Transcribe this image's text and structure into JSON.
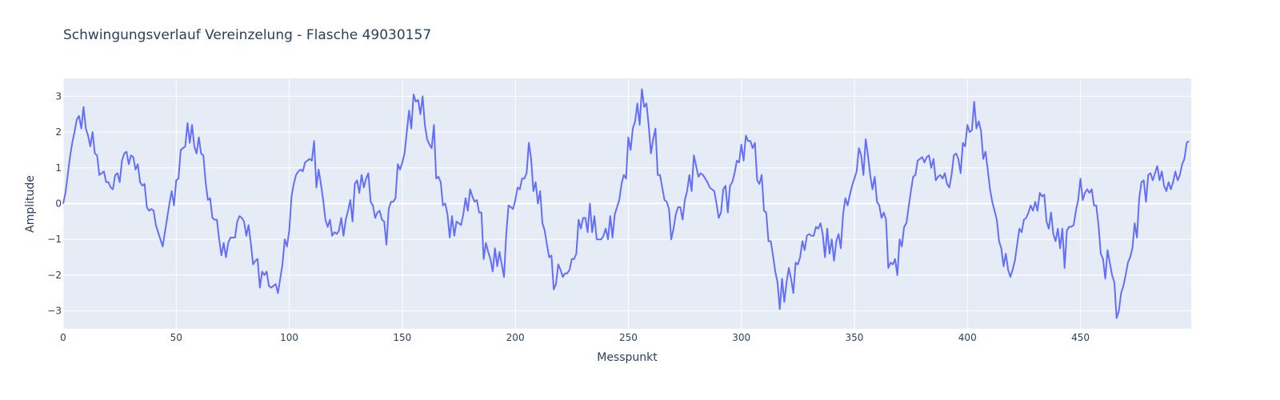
{
  "chart_data": {
    "type": "line",
    "title": "Schwingungsverlauf Vereinzelung - Flasche 49030157",
    "xlabel": "Messpunkt",
    "ylabel": "Amplitude",
    "xlim": [
      0,
      499
    ],
    "ylim": [
      -3.5,
      3.5
    ],
    "x_ticks": [
      0,
      50,
      100,
      150,
      200,
      250,
      300,
      350,
      400,
      450
    ],
    "y_ticks": [
      -3,
      -2,
      -1,
      0,
      1,
      2,
      3
    ],
    "grid": true,
    "colors": {
      "line": "#636efa",
      "plot_bg": "#e5ecf6",
      "grid": "#ffffff",
      "text": "#2a3f5f"
    },
    "series": [
      {
        "x_start": 0,
        "x_step": 1,
        "values": [
          0.0,
          0.3,
          0.8,
          1.3,
          1.7,
          2.0,
          2.35,
          2.45,
          2.1,
          2.7,
          2.1,
          1.9,
          1.6,
          2.0,
          1.4,
          1.35,
          0.8,
          0.85,
          0.9,
          0.6,
          0.6,
          0.45,
          0.4,
          0.8,
          0.85,
          0.6,
          1.2,
          1.4,
          1.45,
          1.1,
          1.35,
          1.3,
          0.95,
          1.1,
          0.6,
          0.5,
          0.55,
          -0.1,
          -0.2,
          -0.15,
          -0.2,
          -0.6,
          -0.8,
          -1.0,
          -1.2,
          -0.8,
          -0.4,
          0.0,
          0.35,
          -0.05,
          0.65,
          0.7,
          1.5,
          1.55,
          1.6,
          2.25,
          1.7,
          2.2,
          1.6,
          1.4,
          1.85,
          1.4,
          1.35,
          0.6,
          0.1,
          0.15,
          -0.4,
          -0.45,
          -0.45,
          -1.0,
          -1.45,
          -1.1,
          -1.5,
          -1.1,
          -0.95,
          -0.95,
          -0.95,
          -0.5,
          -0.35,
          -0.4,
          -0.5,
          -0.9,
          -0.6,
          -1.1,
          -1.7,
          -1.6,
          -1.55,
          -2.35,
          -1.9,
          -2.0,
          -1.9,
          -2.3,
          -2.35,
          -2.3,
          -2.25,
          -2.5,
          -2.1,
          -1.7,
          -1.0,
          -1.2,
          -0.75,
          0.2,
          0.55,
          0.8,
          0.9,
          0.95,
          0.9,
          1.15,
          1.2,
          1.25,
          1.2,
          1.75,
          0.45,
          0.95,
          0.55,
          0.1,
          -0.45,
          -0.65,
          -0.45,
          -0.9,
          -0.8,
          -0.85,
          -0.75,
          -0.4,
          -0.9,
          -0.45,
          -0.2,
          0.1,
          -0.5,
          0.55,
          0.65,
          0.3,
          0.8,
          0.45,
          0.7,
          0.85,
          0.05,
          -0.05,
          -0.4,
          -0.25,
          -0.2,
          -0.45,
          -0.5,
          -1.15,
          -0.15,
          0.05,
          0.05,
          0.15,
          1.1,
          0.95,
          1.15,
          1.4,
          2.0,
          2.6,
          2.1,
          3.05,
          2.85,
          2.9,
          2.5,
          3.0,
          2.2,
          1.8,
          1.65,
          1.55,
          2.2,
          0.7,
          0.75,
          0.6,
          -0.05,
          0.0,
          -0.3,
          -0.95,
          -0.35,
          -0.9,
          -0.5,
          -0.55,
          -0.6,
          -0.3,
          0.15,
          -0.2,
          0.4,
          0.2,
          0.05,
          0.1,
          -0.25,
          -0.25,
          -1.55,
          -1.1,
          -1.35,
          -1.55,
          -1.9,
          -1.25,
          -1.75,
          -1.35,
          -1.7,
          -2.05,
          -0.85,
          -0.05,
          -0.1,
          -0.15,
          0.1,
          0.45,
          0.4,
          0.7,
          0.7,
          0.85,
          1.7,
          1.25,
          0.35,
          0.6,
          0.0,
          0.35,
          -0.55,
          -0.75,
          -1.15,
          -1.5,
          -1.45,
          -2.4,
          -2.25,
          -1.7,
          -1.85,
          -2.05,
          -1.95,
          -1.95,
          -1.85,
          -1.55,
          -1.55,
          -1.4,
          -0.45,
          -0.7,
          -0.4,
          -0.4,
          -0.8,
          0.0,
          -0.8,
          -0.35,
          -1.0,
          -1.0,
          -1.0,
          -0.9,
          -0.7,
          -1.0,
          -0.35,
          -0.95,
          -0.3,
          -0.1,
          0.1,
          0.55,
          0.8,
          0.7,
          1.85,
          1.5,
          2.1,
          2.3,
          2.8,
          2.2,
          3.2,
          2.7,
          2.8,
          2.2,
          1.4,
          1.8,
          2.1,
          0.8,
          0.8,
          0.45,
          0.1,
          0.05,
          -0.15,
          -1.0,
          -0.7,
          -0.3,
          -0.1,
          -0.1,
          -0.45,
          0.1,
          0.35,
          0.8,
          0.35,
          1.35,
          1.05,
          0.75,
          0.85,
          0.8,
          0.7,
          0.6,
          0.45,
          0.4,
          0.35,
          0.0,
          -0.4,
          -0.25,
          0.4,
          0.5,
          -0.25,
          0.5,
          0.6,
          0.85,
          1.2,
          1.15,
          1.65,
          1.2,
          1.9,
          1.75,
          1.75,
          1.55,
          1.7,
          0.65,
          0.55,
          0.8,
          -0.2,
          -0.25,
          -1.05,
          -1.05,
          -1.45,
          -1.9,
          -2.2,
          -2.95,
          -2.1,
          -2.75,
          -2.2,
          -1.8,
          -2.1,
          -2.5,
          -1.65,
          -1.7,
          -1.5,
          -1.05,
          -1.3,
          -0.9,
          -0.85,
          -0.9,
          -0.9,
          -0.65,
          -0.7,
          -0.55,
          -0.85,
          -1.5,
          -0.7,
          -1.4,
          -1.0,
          -1.6,
          -1.05,
          -0.85,
          -1.25,
          -0.3,
          0.15,
          -0.05,
          0.25,
          0.5,
          0.7,
          0.9,
          1.55,
          1.35,
          0.8,
          1.8,
          1.35,
          0.8,
          0.4,
          0.75,
          0.05,
          -0.05,
          -0.4,
          -0.25,
          -0.45,
          -1.8,
          -1.65,
          -1.7,
          -1.55,
          -2.0,
          -1.0,
          -1.2,
          -0.65,
          -0.55,
          -0.1,
          0.35,
          0.75,
          0.8,
          1.2,
          1.25,
          1.3,
          1.15,
          1.3,
          1.35,
          1.0,
          1.25,
          0.65,
          0.75,
          0.8,
          0.7,
          0.85,
          0.55,
          0.45,
          0.8,
          1.35,
          1.4,
          1.25,
          0.85,
          1.7,
          1.6,
          2.2,
          2.0,
          2.05,
          2.85,
          2.1,
          2.3,
          2.05,
          1.25,
          1.45,
          0.95,
          0.4,
          0.05,
          -0.2,
          -0.45,
          -1.05,
          -1.25,
          -1.75,
          -1.4,
          -1.85,
          -2.05,
          -1.85,
          -1.6,
          -1.15,
          -0.7,
          -0.8,
          -0.45,
          -0.4,
          -0.25,
          -0.05,
          -0.2,
          0.05,
          -0.2,
          0.3,
          0.2,
          0.25,
          -0.5,
          -0.7,
          -0.25,
          -0.85,
          -1.05,
          -0.7,
          -1.25,
          -0.7,
          -1.8,
          -0.75,
          -0.65,
          -0.65,
          -0.6,
          -0.2,
          0.1,
          0.7,
          0.1,
          0.3,
          0.4,
          0.3,
          0.4,
          -0.05,
          -0.05,
          -0.6,
          -1.4,
          -1.55,
          -2.1,
          -1.3,
          -1.65,
          -2.0,
          -2.2,
          -3.2,
          -3.0,
          -2.5,
          -2.3,
          -2.0,
          -1.65,
          -1.5,
          -1.25,
          -0.55,
          -0.95,
          0.15,
          0.6,
          0.65,
          0.05,
          0.8,
          0.85,
          0.65,
          0.85,
          1.05,
          0.65,
          0.9,
          0.5,
          0.35,
          0.6,
          0.4,
          0.6,
          0.9,
          0.65,
          0.8,
          1.1,
          1.25,
          1.7,
          1.75
        ]
      }
    ]
  }
}
